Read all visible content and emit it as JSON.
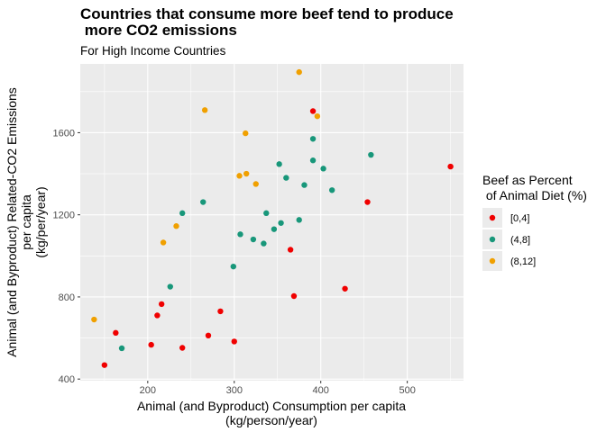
{
  "chart_data": {
    "type": "scatter",
    "title_lines": [
      "Countries that consume more beef tend to produce",
      " more CO2 emissions"
    ],
    "subtitle": "For High Income Countries",
    "xlabel_lines": [
      "Animal (and Byproduct) Consumption per capita",
      "(kg/person/year)"
    ],
    "ylabel_lines": [
      "Animal (and Byproduct) Related-CO2 Emissions",
      "per capita",
      "(kg/per/year)"
    ],
    "xlim": [
      122,
      565
    ],
    "ylim": [
      392,
      1935
    ],
    "x_ticks": [
      200,
      300,
      400,
      500
    ],
    "y_ticks": [
      400,
      800,
      1200,
      1600
    ],
    "grid": true,
    "legend": {
      "title_lines": [
        "Beef as Percent",
        " of Animal Diet (%)"
      ],
      "position": "right"
    },
    "series": [
      {
        "name": "[0,4]",
        "color": "#f00000",
        "points": [
          [
            150,
            468
          ],
          [
            163,
            625
          ],
          [
            204,
            567
          ],
          [
            211,
            710
          ],
          [
            216,
            765
          ],
          [
            240,
            552
          ],
          [
            270,
            612
          ],
          [
            284,
            730
          ],
          [
            300,
            583
          ],
          [
            365,
            1030
          ],
          [
            369,
            804
          ],
          [
            391,
            1705
          ],
          [
            428,
            840
          ],
          [
            454,
            1262
          ],
          [
            550,
            1435
          ]
        ]
      },
      {
        "name": "(4,8]",
        "color": "#18977a",
        "points": [
          [
            170,
            550
          ],
          [
            226,
            850
          ],
          [
            240,
            1208
          ],
          [
            264,
            1262
          ],
          [
            299,
            948
          ],
          [
            307,
            1105
          ],
          [
            322,
            1080
          ],
          [
            334,
            1060
          ],
          [
            337,
            1208
          ],
          [
            346,
            1130
          ],
          [
            352,
            1447
          ],
          [
            354,
            1160
          ],
          [
            360,
            1380
          ],
          [
            375,
            1175
          ],
          [
            381,
            1345
          ],
          [
            391,
            1570
          ],
          [
            391,
            1465
          ],
          [
            403,
            1425
          ],
          [
            413,
            1320
          ],
          [
            458,
            1492
          ]
        ]
      },
      {
        "name": "(8,12]",
        "color": "#f0a000",
        "points": [
          [
            138,
            690
          ],
          [
            218,
            1065
          ],
          [
            233,
            1145
          ],
          [
            266,
            1710
          ],
          [
            306,
            1390
          ],
          [
            313,
            1597
          ],
          [
            314,
            1400
          ],
          [
            325,
            1350
          ],
          [
            375,
            1895
          ],
          [
            396,
            1680
          ]
        ]
      }
    ]
  }
}
